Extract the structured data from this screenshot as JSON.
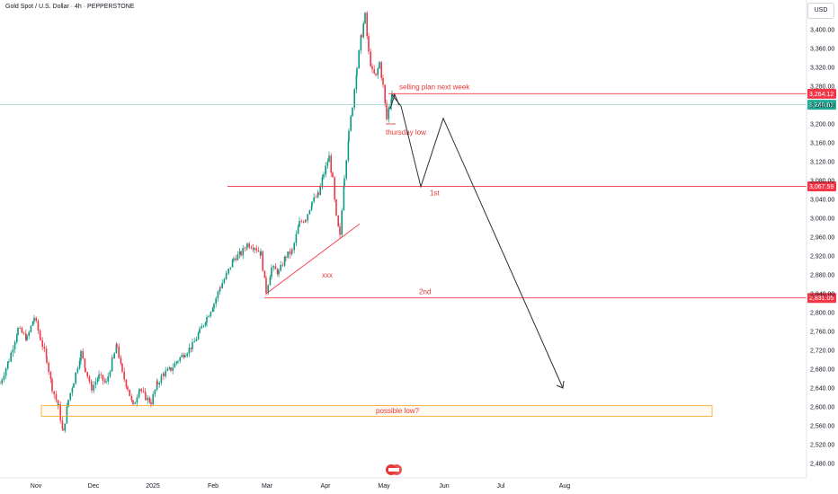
{
  "header": {
    "title": "Gold Spot / U.S. Dollar · 4h · PEPPERSTONE"
  },
  "currency_button": "USD",
  "chart_data": {
    "type": "candlestick",
    "title": "Gold Spot / U.S. Dollar · 4h · PEPPERSTONE",
    "y_ticks": [
      2480,
      2520,
      2560,
      2600,
      2640,
      2680,
      2720,
      2760,
      2800,
      2840,
      2880,
      2920,
      2960,
      3000,
      3040,
      3080,
      3120,
      3160,
      3200,
      3240,
      3280,
      3320,
      3360,
      3400
    ],
    "ylim": [
      2462,
      3436
    ],
    "x_ticks": [
      "Nov",
      "Dec",
      "2025",
      "Feb",
      "Mar",
      "Apr",
      "May",
      "Jun",
      "Jul",
      "Aug"
    ],
    "price_path": [
      [
        0,
        2650
      ],
      [
        10,
        2700
      ],
      [
        20,
        2765
      ],
      [
        30,
        2745
      ],
      [
        38,
        2790
      ],
      [
        45,
        2745
      ],
      [
        52,
        2700
      ],
      [
        58,
        2640
      ],
      [
        65,
        2600
      ],
      [
        70,
        2545
      ],
      [
        76,
        2615
      ],
      [
        82,
        2655
      ],
      [
        90,
        2715
      ],
      [
        95,
        2680
      ],
      [
        102,
        2640
      ],
      [
        110,
        2665
      ],
      [
        118,
        2650
      ],
      [
        125,
        2700
      ],
      [
        130,
        2730
      ],
      [
        136,
        2670
      ],
      [
        142,
        2640
      ],
      [
        148,
        2600
      ],
      [
        155,
        2640
      ],
      [
        162,
        2620
      ],
      [
        168,
        2610
      ],
      [
        175,
        2650
      ],
      [
        182,
        2670
      ],
      [
        190,
        2680
      ],
      [
        198,
        2700
      ],
      [
        206,
        2715
      ],
      [
        214,
        2730
      ],
      [
        222,
        2760
      ],
      [
        230,
        2790
      ],
      [
        238,
        2820
      ],
      [
        245,
        2855
      ],
      [
        252,
        2880
      ],
      [
        260,
        2915
      ],
      [
        268,
        2925
      ],
      [
        275,
        2945
      ],
      [
        283,
        2940
      ],
      [
        290,
        2925
      ],
      [
        296,
        2845
      ],
      [
        302,
        2895
      ],
      [
        310,
        2885
      ],
      [
        318,
        2920
      ],
      [
        325,
        2930
      ],
      [
        333,
        2990
      ],
      [
        340,
        3000
      ],
      [
        347,
        3035
      ],
      [
        354,
        3050
      ],
      [
        360,
        3095
      ],
      [
        366,
        3130
      ],
      [
        370,
        3080
      ],
      [
        374,
        3000
      ],
      [
        378,
        2960
      ],
      [
        383,
        3090
      ],
      [
        388,
        3180
      ],
      [
        392,
        3240
      ],
      [
        397,
        3320
      ],
      [
        402,
        3390
      ],
      [
        406,
        3430
      ],
      [
        410,
        3350
      ],
      [
        414,
        3310
      ],
      [
        418,
        3300
      ],
      [
        422,
        3330
      ],
      [
        426,
        3280
      ],
      [
        430,
        3210
      ],
      [
        433,
        3240
      ],
      [
        436,
        3265
      ],
      [
        440,
        3252
      ]
    ],
    "horizontal_levels": [
      {
        "label": "selling plan next week",
        "value": 3264.12,
        "badge": "3,264.12",
        "color": "#f23645"
      },
      {
        "label": "",
        "value": 3240.62,
        "badge": "3,240.62",
        "color": "#22ab94"
      },
      {
        "label": "1st",
        "value": 3067.59,
        "badge": "3,067.59",
        "color": "#f23645"
      },
      {
        "label": "2nd",
        "value": 2831.05,
        "badge": "2,831.05",
        "color": "#f23645"
      }
    ],
    "annotations": {
      "thursday_low": "thursday low",
      "trendline_label": "xxx",
      "box_label": "possible low?"
    },
    "box_range": [
      2580,
      2603
    ],
    "trendline": [
      [
        296,
        2840
      ],
      [
        400,
        2988
      ]
    ],
    "projection_path": [
      [
        436,
        3262
      ],
      [
        446,
        3238
      ],
      [
        468,
        3067
      ],
      [
        493,
        3212
      ],
      [
        626,
        2640
      ]
    ],
    "grid": false,
    "legend": "none"
  }
}
